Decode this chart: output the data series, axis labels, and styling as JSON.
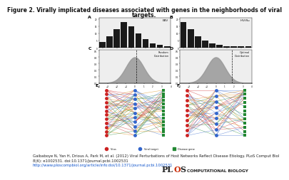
{
  "title_line1": "Figure 2. Virally implicated diseases associated with genes in the neighborhoods of viral",
  "title_line2": "targets.",
  "title_fontsize": 5.5,
  "caption_line1": "Gaibaboye N, Yan H, Drious A, Park M, et al. (2012) Viral Perturbations of Host Networks Reflect Disease Etiology. PLoS Comput Biol",
  "caption_line2": "8(6): e1002531. doi:10.1371/journal.pcbi.1002531",
  "caption_url": "http://www.ploscompbiol.org/article/info:doi/10.1371/journal.pcbi.1002531",
  "caption_fontsize": 3.8,
  "url_color": "#1155cc",
  "plos_fontsize": 8,
  "background_color": "#ffffff",
  "bar_heights_A": [
    4,
    8,
    13,
    18,
    15,
    10,
    6,
    3,
    2,
    1
  ],
  "bar_heights_B": [
    18,
    13,
    8,
    5,
    3,
    2,
    1,
    1,
    1,
    1
  ],
  "label_A": "A",
  "label_B": "B",
  "label_C": "C",
  "label_D": "D",
  "label_E": "E",
  "label_F": "F",
  "inset_A": "EBV",
  "inset_B": "HIV/flu",
  "inset_C": "Random\nDistribution",
  "inset_D": "Optimal\nDistribution",
  "node_red": "#cc2222",
  "node_blue": "#3366cc",
  "node_green": "#228833",
  "ec_red": "#cc2222",
  "ec_blue": "#3366cc",
  "ec_orange": "#dd8800",
  "ec_green": "#228833"
}
